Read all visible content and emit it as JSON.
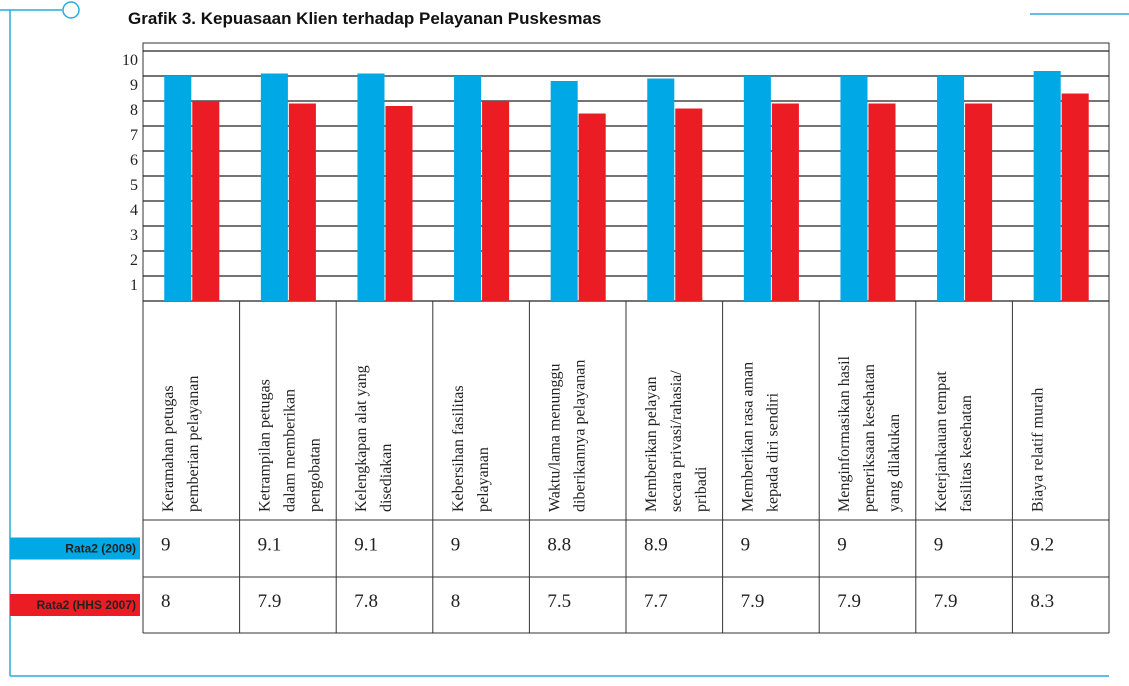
{
  "chart_data": {
    "type": "bar",
    "title": "Grafik 3. Kepuasaan Klien terhadap Pelayanan Puskesmas",
    "categories": [
      [
        "Keramahan petugas",
        "pemberian pelayanan"
      ],
      [
        "Ketrampilan petugas",
        "dalam memberikan",
        "pengobatan"
      ],
      [
        "Kelengkapan alat yang",
        "disediakan"
      ],
      [
        "Kebersihan fasilitas",
        "pelayanan"
      ],
      [
        "Waktu/lama menunggu",
        "diberikannya pelayanan"
      ],
      [
        "Memberikan pelayan",
        "secara privasi/rahasia/",
        "pribadi"
      ],
      [
        "Memberikan rasa aman",
        "kepada diri sendiri"
      ],
      [
        "Menginformasikan hasil",
        "pemeriksaan kesehatan",
        "yang dilakukan"
      ],
      [
        "Keterjankauan tempat",
        "fasilitas kesehatan"
      ],
      [
        "Biaya relatif  murah"
      ]
    ],
    "series": [
      {
        "name": "Rata2 (2009)",
        "color": "#00a9e6",
        "values": [
          9,
          9.1,
          9.1,
          9,
          8.8,
          8.9,
          9,
          9,
          9,
          9.2
        ]
      },
      {
        "name": "Rata2 (HHS 2007)",
        "color": "#ec1c24",
        "values": [
          8,
          7.9,
          7.8,
          8,
          7.5,
          7.7,
          7.9,
          7.9,
          7.9,
          8.3
        ]
      }
    ],
    "ylim": [
      0,
      10
    ],
    "yticks": [
      1,
      2,
      3,
      4,
      5,
      6,
      7,
      8,
      9,
      10
    ],
    "grid": true
  }
}
